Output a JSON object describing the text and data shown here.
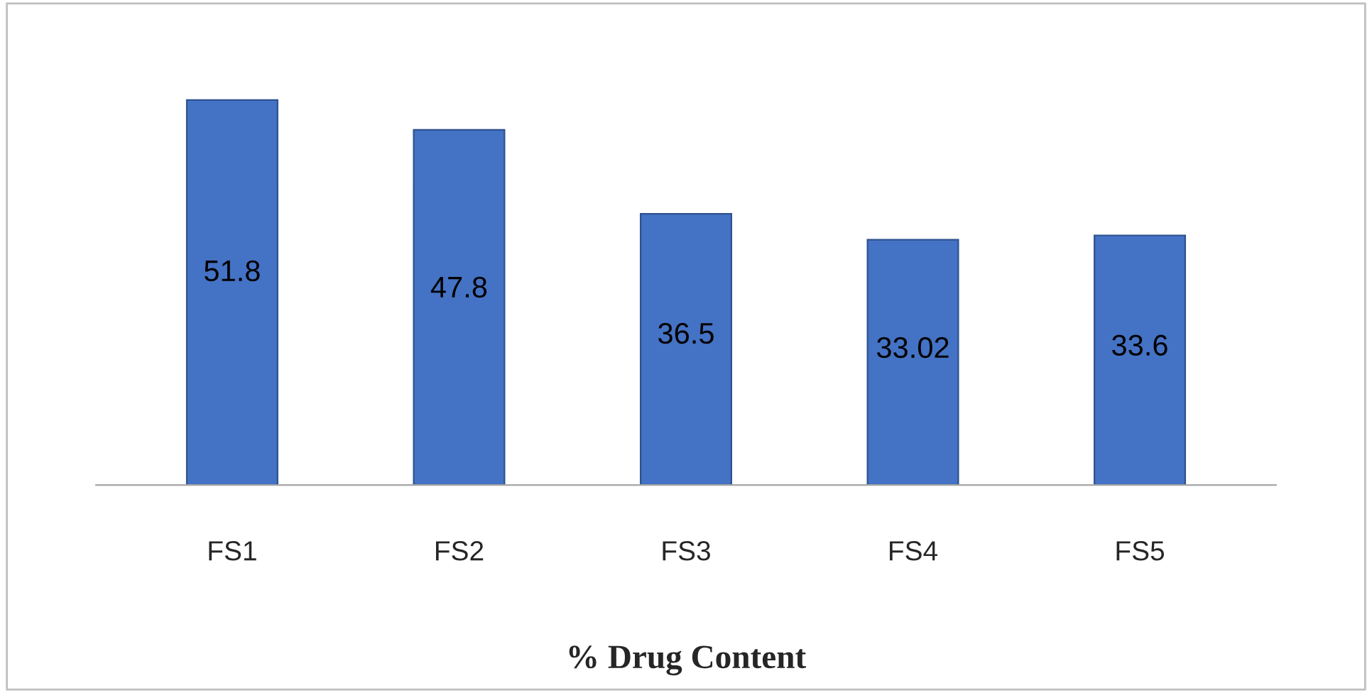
{
  "chart_data": {
    "type": "bar",
    "xlabel": "% Drug Content",
    "categories": [
      "FS1",
      "FS2",
      "FS3",
      "FS4",
      "FS5"
    ],
    "values": [
      51.8,
      47.8,
      36.5,
      33.02,
      33.6
    ],
    "color": "#4472c4",
    "data_labels": true,
    "grid": false,
    "legend": false
  }
}
